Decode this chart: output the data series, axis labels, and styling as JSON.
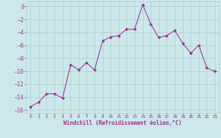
{
  "x": [
    0,
    1,
    2,
    3,
    4,
    5,
    6,
    7,
    8,
    9,
    10,
    11,
    12,
    13,
    14,
    15,
    16,
    17,
    18,
    19,
    20,
    21,
    22,
    23
  ],
  "y": [
    -15.5,
    -14.8,
    -13.5,
    -13.5,
    -14.2,
    -9.0,
    -9.8,
    -8.7,
    -9.8,
    -5.3,
    -4.7,
    -4.5,
    -3.5,
    -3.5,
    0.3,
    -2.7,
    -4.8,
    -4.5,
    -3.7,
    -5.7,
    -7.2,
    -6.0,
    -9.5,
    -10.0
  ],
  "xlabel": "Windchill (Refroidissement éolien,°C)",
  "xlim": [
    -0.5,
    23.5
  ],
  "ylim": [
    -16.5,
    0.8
  ],
  "yticks": [
    0,
    -2,
    -4,
    -6,
    -8,
    -10,
    -12,
    -14,
    -16
  ],
  "xticks": [
    0,
    1,
    2,
    3,
    4,
    5,
    6,
    7,
    8,
    9,
    10,
    11,
    12,
    13,
    14,
    15,
    16,
    17,
    18,
    19,
    20,
    21,
    22,
    23
  ],
  "line_color": "#993399",
  "marker_color": "#993399",
  "bg_color": "#cce8e8",
  "grid_color": "#aacccc",
  "tick_label_color": "#993399",
  "xlabel_color": "#993399",
  "fig_bg": "#cce8e8"
}
